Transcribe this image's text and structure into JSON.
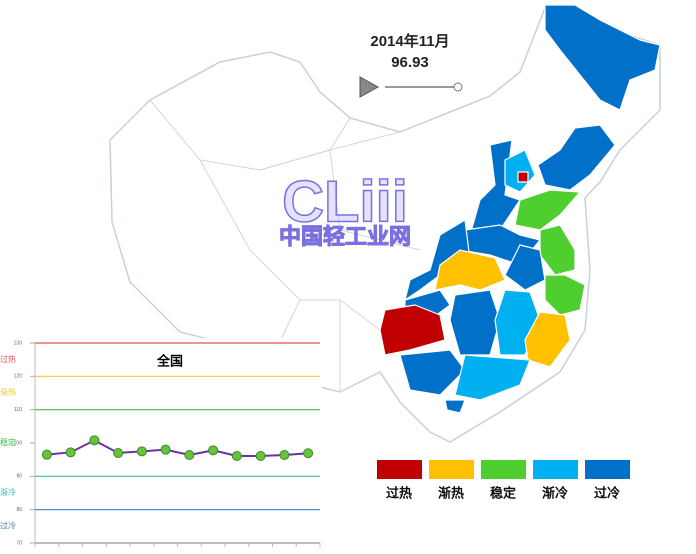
{
  "header": {
    "date": "2014年11月",
    "value": "96.93"
  },
  "watermark": {
    "logo": "CLiii",
    "text": "中国轻工业网"
  },
  "legend": [
    {
      "label": "过热",
      "color": "#c00000"
    },
    {
      "label": "渐热",
      "color": "#ffc000"
    },
    {
      "label": "稳定",
      "color": "#4fce2f"
    },
    {
      "label": "渐冷",
      "color": "#00b0f0"
    },
    {
      "label": "过冷",
      "color": "#0070c8"
    }
  ],
  "chart_data": {
    "type": "line",
    "title": "全国",
    "values": [
      96.5,
      97.2,
      100.8,
      97.0,
      97.5,
      98.0,
      96.4,
      97.8,
      96.1,
      96.1,
      96.4,
      96.93
    ],
    "color": "#7030a0",
    "marker_color": "#66c33a",
    "ylim": [
      70,
      130
    ],
    "yticks": [
      70,
      80,
      90,
      100,
      110,
      120,
      130
    ],
    "bands": [
      {
        "label": "过热",
        "value": 130,
        "color": "#e05050"
      },
      {
        "label": "渐热",
        "value": 120,
        "color": "#f0c830"
      },
      {
        "label": "稳定",
        "value": 110,
        "color": "#3cbf3c"
      },
      {
        "label": "渐冷",
        "value": 90,
        "color": "#30c0b0"
      },
      {
        "label": "过冷",
        "value": 80,
        "color": "#3a80c8"
      }
    ]
  }
}
